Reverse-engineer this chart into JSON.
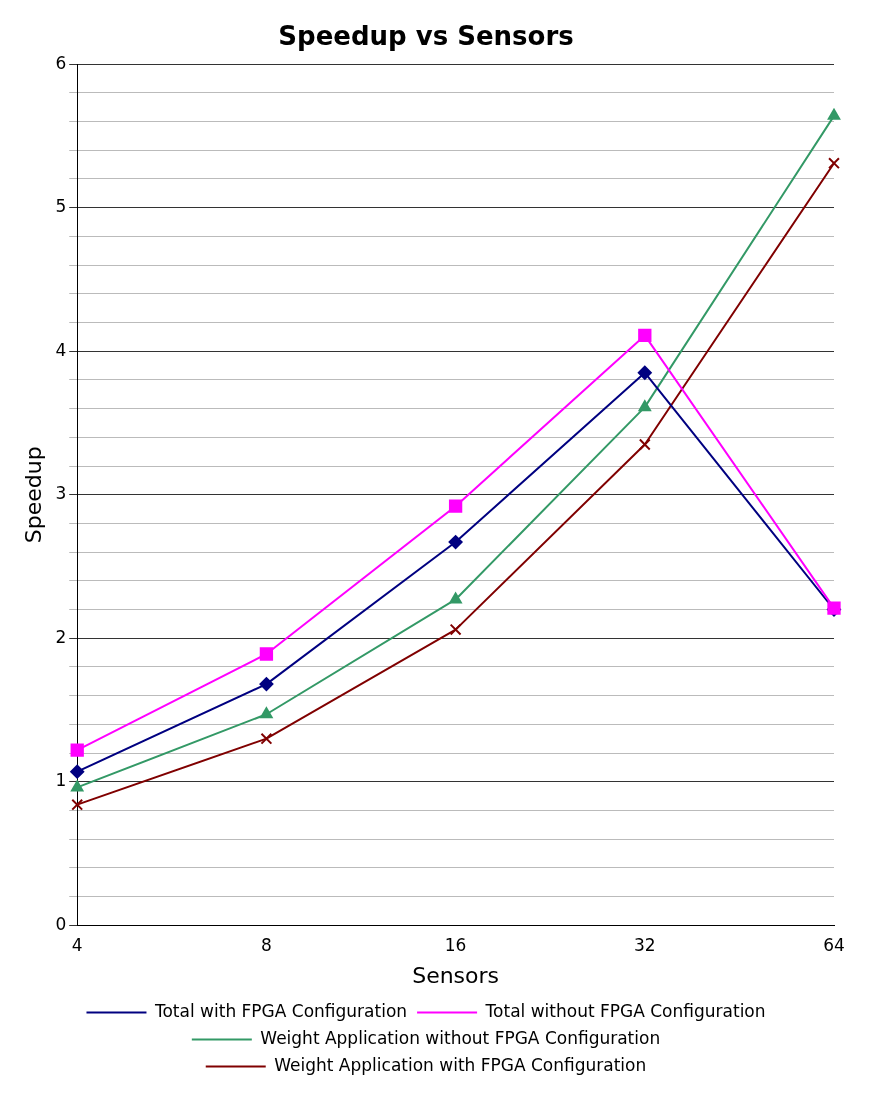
{
  "chart_data": {
    "type": "line",
    "title": "Speedup vs Sensors",
    "xlabel": "Sensors",
    "ylabel": "Speedup",
    "categories": [
      "4",
      "8",
      "16",
      "32",
      "64"
    ],
    "ylim": [
      0,
      6
    ],
    "yticks": [
      0,
      {
        "value": 0.2,
        "label": null
      },
      {
        "value": 0.4,
        "label": null
      },
      {
        "value": 0.6,
        "label": null
      },
      {
        "value": 0.8,
        "label": null
      },
      1,
      {
        "value": 1.2,
        "label": null
      },
      {
        "value": 1.4,
        "label": null
      },
      {
        "value": 1.6,
        "label": null
      },
      {
        "value": 1.8,
        "label": null
      },
      2,
      {
        "value": 2.2,
        "label": null
      },
      {
        "value": 2.4,
        "label": null
      },
      {
        "value": 2.6,
        "label": null
      },
      {
        "value": 2.8,
        "label": null
      },
      3,
      {
        "value": 3.2,
        "label": null
      },
      {
        "value": 3.4,
        "label": null
      },
      {
        "value": 3.6,
        "label": null
      },
      {
        "value": 3.8,
        "label": null
      },
      4,
      {
        "value": 4.2,
        "label": null
      },
      {
        "value": 4.4,
        "label": null
      },
      {
        "value": 4.6,
        "label": null
      },
      {
        "value": 4.8,
        "label": null
      },
      5,
      {
        "value": 5.2,
        "label": null
      },
      {
        "value": 5.4,
        "label": null
      },
      {
        "value": 5.6,
        "label": null
      },
      {
        "value": 5.8,
        "label": null
      },
      6
    ],
    "grid": "y",
    "legend": "bottom",
    "series": [
      {
        "name": "Total with FPGA Configuration",
        "color": "#000080",
        "marker": "diamond",
        "values": [
          1.07,
          1.68,
          2.67,
          3.85,
          2.2
        ]
      },
      {
        "name": "Total without FPGA Configuration",
        "color": "#ff00ff",
        "marker": "square",
        "values": [
          1.22,
          1.89,
          2.92,
          4.11,
          2.21
        ]
      },
      {
        "name": "Weight Application without FPGA Configuration",
        "color": "#339966",
        "marker": "triangle",
        "values": [
          0.96,
          1.47,
          2.27,
          3.61,
          5.64
        ]
      },
      {
        "name": "Weight Application with FPGA Configuration",
        "color": "#800000",
        "marker": "cross",
        "values": [
          0.84,
          1.3,
          2.06,
          3.35,
          5.31
        ]
      }
    ]
  }
}
